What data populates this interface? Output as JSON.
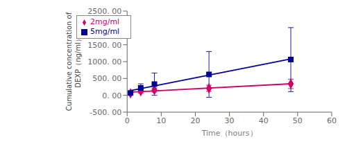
{
  "chart_data": {
    "type": "scatter",
    "xlabel": "Time（hours）",
    "ylabel": "Cumulative concentration of\nDEXP（ng/ml）",
    "xlim": [
      0,
      60
    ],
    "ylim": [
      -500,
      2500
    ],
    "xticks": [
      0,
      10,
      20,
      30,
      40,
      50,
      60
    ],
    "yticks": [
      {
        "value": -500,
        "label": "-500. 00"
      },
      {
        "value": 0,
        "label": "0. 00"
      },
      {
        "value": 500,
        "label": "500. 00"
      },
      {
        "value": 1000,
        "label": "1000. 00"
      },
      {
        "value": 1500,
        "label": "1500. 00"
      },
      {
        "value": 2000,
        "label": "2000. 00"
      },
      {
        "value": 2500,
        "label": "2500. 00"
      }
    ],
    "grid": false,
    "legend": "upper left",
    "series": [
      {
        "name": "2mg/ml",
        "color": "#cc0066",
        "marker": "diamond",
        "line_style": "solid",
        "x": [
          1,
          4,
          8,
          24,
          48
        ],
        "values": [
          60,
          120,
          155,
          210,
          340
        ],
        "errors": [
          30,
          50,
          60,
          90,
          140
        ],
        "trend_x": [
          1,
          48
        ],
        "trend_values": [
          91.5646438,
          342.5310026
        ]
      },
      {
        "name": "5mg/ml",
        "color": "#000099",
        "marker": "square",
        "line_style": "solid",
        "x": [
          1,
          4,
          8,
          24,
          48
        ],
        "values": [
          70,
          220,
          330,
          620,
          1060
        ],
        "errors": [
          40,
          120,
          330,
          680,
          950
        ],
        "trend_x": [
          1,
          48
        ],
        "trend_values": [
          140.7387863,
          1078.5686017
        ]
      }
    ]
  }
}
